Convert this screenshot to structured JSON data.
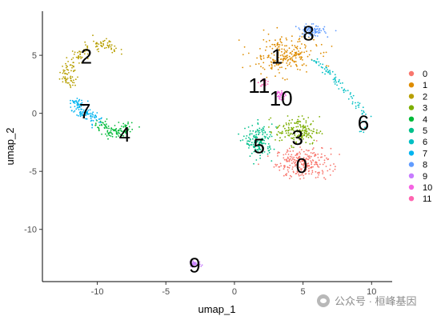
{
  "chart_data": {
    "type": "scatter",
    "xlabel": "umap_1",
    "ylabel": "umap_2",
    "xlim": [
      -14,
      11.5
    ],
    "ylim": [
      -14.5,
      8.8
    ],
    "x_ticks": [
      -10,
      -5,
      0,
      5,
      10
    ],
    "y_ticks": [
      5,
      0,
      -5,
      -10
    ],
    "x_tick_labels": [
      "-10",
      "-5",
      "0",
      "5",
      "10"
    ],
    "y_tick_labels": [
      "5",
      "0",
      "-5",
      "-10"
    ],
    "grid": false,
    "legend_position": "right",
    "series": [
      {
        "name": "0",
        "color": "#F8766D",
        "label": "0",
        "label_pos": [
          4.9,
          -4.5
        ],
        "count": 260,
        "shape": "blob",
        "center": [
          5.0,
          -4.3
        ],
        "spread": [
          2.0,
          1.3
        ]
      },
      {
        "name": "1",
        "color": "#DE8C00",
        "label": "1",
        "label_pos": [
          3.1,
          4.9
        ],
        "count": 230,
        "shape": "blob",
        "center": [
          3.6,
          5.0
        ],
        "spread": [
          2.4,
          1.6
        ]
      },
      {
        "name": "2",
        "color": "#B79F00",
        "label": "2",
        "label_pos": [
          -10.8,
          4.9
        ],
        "count": 150,
        "shape": "path",
        "path": [
          [
            -8.5,
            5.5
          ],
          [
            -9.8,
            6.1
          ],
          [
            -11.2,
            5.2
          ],
          [
            -12.1,
            4.0
          ],
          [
            -12.3,
            3.0
          ],
          [
            -11.8,
            2.2
          ]
        ],
        "width": 0.5
      },
      {
        "name": "3",
        "color": "#7CAE00",
        "label": "3",
        "label_pos": [
          4.6,
          -2.1
        ],
        "count": 170,
        "shape": "blob",
        "center": [
          4.6,
          -1.5
        ],
        "spread": [
          1.6,
          1.2
        ]
      },
      {
        "name": "4",
        "color": "#00BA38",
        "label": "4",
        "label_pos": [
          -8.0,
          -1.8
        ],
        "count": 110,
        "shape": "path",
        "path": [
          [
            -10.0,
            -0.8
          ],
          [
            -9.0,
            -1.6
          ],
          [
            -8.2,
            -1.8
          ],
          [
            -7.6,
            -0.9
          ]
        ],
        "width": 0.55
      },
      {
        "name": "5",
        "color": "#00C08B",
        "label": "5",
        "label_pos": [
          1.8,
          -2.8
        ],
        "count": 150,
        "shape": "blob",
        "center": [
          1.8,
          -2.4
        ],
        "spread": [
          1.0,
          1.4
        ]
      },
      {
        "name": "6",
        "color": "#00BFC4",
        "label": "6",
        "label_pos": [
          9.4,
          -0.8
        ],
        "count": 90,
        "shape": "path",
        "path": [
          [
            5.8,
            4.6
          ],
          [
            7.0,
            3.4
          ],
          [
            8.2,
            1.8
          ],
          [
            9.2,
            0.3
          ],
          [
            9.5,
            -0.8
          ],
          [
            9.2,
            -1.5
          ]
        ],
        "width": 0.3
      },
      {
        "name": "7",
        "color": "#00B4F0",
        "label": "7",
        "label_pos": [
          -10.9,
          0.2
        ],
        "count": 110,
        "shape": "path",
        "path": [
          [
            -11.6,
            1.2
          ],
          [
            -11.2,
            0.3
          ],
          [
            -10.5,
            -0.3
          ],
          [
            -9.9,
            -0.7
          ]
        ],
        "width": 0.55
      },
      {
        "name": "8",
        "color": "#619CFF",
        "label": "8",
        "label_pos": [
          5.4,
          6.9
        ],
        "count": 90,
        "shape": "blob",
        "center": [
          5.6,
          7.1
        ],
        "spread": [
          1.0,
          0.5
        ]
      },
      {
        "name": "9",
        "color": "#C77CFF",
        "label": "9",
        "label_pos": [
          -2.9,
          -13.1
        ],
        "count": 45,
        "shape": "blob",
        "center": [
          -2.9,
          -13.0
        ],
        "spread": [
          0.5,
          0.25
        ]
      },
      {
        "name": "10",
        "color": "#F564E3",
        "label": "10",
        "label_pos": [
          3.4,
          1.3
        ],
        "count": 30,
        "shape": "blob",
        "center": [
          3.4,
          1.6
        ],
        "spread": [
          0.3,
          0.4
        ]
      },
      {
        "name": "11",
        "color": "#FF64B0",
        "label": "11",
        "label_pos": [
          1.8,
          2.4
        ],
        "count": 25,
        "shape": "blob",
        "center": [
          2.2,
          2.6
        ],
        "spread": [
          0.3,
          0.4
        ]
      }
    ]
  },
  "watermark": {
    "text": "公众号 · 桓峰基因"
  }
}
